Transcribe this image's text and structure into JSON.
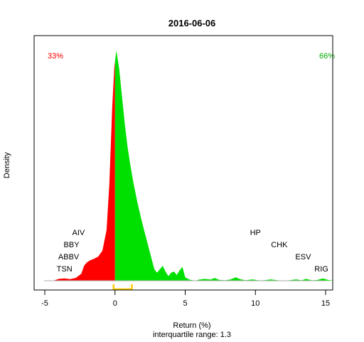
{
  "chart_data": {
    "type": "area",
    "title": "2016-06-06",
    "xlabel": "Return (%)",
    "ylabel": "Density",
    "subtitle": "interquartile range: 1.3",
    "xlim": [
      -5,
      16
    ],
    "x_ticks": [
      -5,
      0,
      5,
      10,
      15
    ],
    "left_share_label": "33%",
    "right_share_label": "66%",
    "colors": {
      "negative": "#ff0000",
      "positive": "#00e000",
      "iqr_bracket": "#ffcc00",
      "left_share": "#ff0000",
      "right_share": "#00aa00"
    },
    "iqr": [
      -0.1,
      1.2
    ],
    "density": {
      "x": [
        -4.4,
        -4.0,
        -3.6,
        -3.2,
        -2.8,
        -2.4,
        -2.2,
        -2.0,
        -1.8,
        -1.5,
        -1.2,
        -0.9,
        -0.6,
        -0.4,
        -0.2,
        -0.05,
        0.1,
        0.3,
        0.5,
        0.7,
        0.9,
        1.1,
        1.3,
        1.6,
        1.9,
        2.2,
        2.5,
        2.8,
        3.0,
        3.2,
        3.4,
        3.6,
        3.8,
        4.0,
        4.2,
        4.4,
        4.6,
        4.8,
        5.0,
        5.3,
        5.7,
        6.0,
        6.4,
        6.8,
        7.1,
        7.4,
        7.8,
        8.2,
        8.6,
        8.9,
        9.3,
        9.8,
        10.2,
        10.6,
        11.1,
        11.6,
        12.0,
        12.4,
        12.9,
        13.3,
        13.6,
        14.0,
        14.4,
        14.8,
        15.2,
        15.6
      ],
      "y": [
        0.0,
        0.008,
        0.01,
        0.007,
        0.012,
        0.03,
        0.065,
        0.08,
        0.088,
        0.095,
        0.105,
        0.13,
        0.22,
        0.42,
        0.75,
        0.93,
        1.0,
        0.92,
        0.8,
        0.68,
        0.58,
        0.5,
        0.43,
        0.34,
        0.26,
        0.19,
        0.12,
        0.05,
        0.035,
        0.05,
        0.065,
        0.04,
        0.02,
        0.035,
        0.04,
        0.025,
        0.045,
        0.06,
        0.015,
        0.005,
        0.0,
        0.005,
        0.008,
        0.005,
        0.012,
        0.004,
        0.002,
        0.005,
        0.015,
        0.007,
        0.002,
        0.006,
        0.002,
        0.002,
        0.006,
        0.002,
        0.001,
        0.002,
        0.006,
        0.002,
        0.008,
        0.002,
        0.003,
        0.01,
        0.003,
        0.0
      ]
    },
    "annotations": [
      {
        "label": "AIV",
        "x": -2.6,
        "level": 4
      },
      {
        "label": "BBY",
        "x": -3.1,
        "level": 3
      },
      {
        "label": "ABBV",
        "x": -3.3,
        "level": 2
      },
      {
        "label": "TSN",
        "x": -3.6,
        "level": 1
      },
      {
        "label": "HP",
        "x": 10.0,
        "level": 4
      },
      {
        "label": "CHK",
        "x": 11.7,
        "level": 3
      },
      {
        "label": "ESV",
        "x": 13.4,
        "level": 2
      },
      {
        "label": "RIG",
        "x": 14.7,
        "level": 1
      }
    ]
  }
}
